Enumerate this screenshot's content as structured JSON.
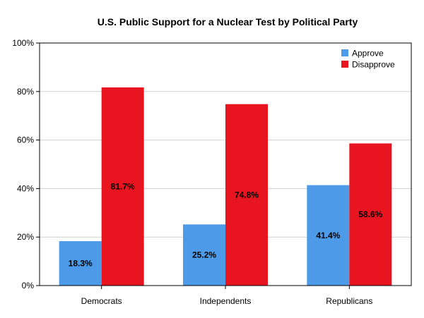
{
  "chart_data": {
    "type": "bar",
    "title": "U.S. Public Support for a Nuclear Test by Political Party",
    "xlabel": "",
    "ylabel": "",
    "categories": [
      "Democrats",
      "Independents",
      "Republicans"
    ],
    "series": [
      {
        "name": "Approve",
        "values": [
          18.3,
          25.2,
          41.4
        ],
        "labels": [
          "18.3%",
          "25.2%",
          "41.4%"
        ],
        "color": "#4d9be8"
      },
      {
        "name": "Disapprove",
        "values": [
          81.7,
          74.8,
          58.6
        ],
        "labels": [
          "81.7%",
          "74.8%",
          "58.6%"
        ],
        "color": "#e8141f"
      }
    ],
    "ylim": [
      0,
      100
    ],
    "yticks": [
      0,
      20,
      40,
      60,
      80,
      100
    ],
    "ytick_labels": [
      "0%",
      "20%",
      "40%",
      "60%",
      "80%",
      "100%"
    ],
    "grid": true,
    "legend_position": "top-right"
  }
}
